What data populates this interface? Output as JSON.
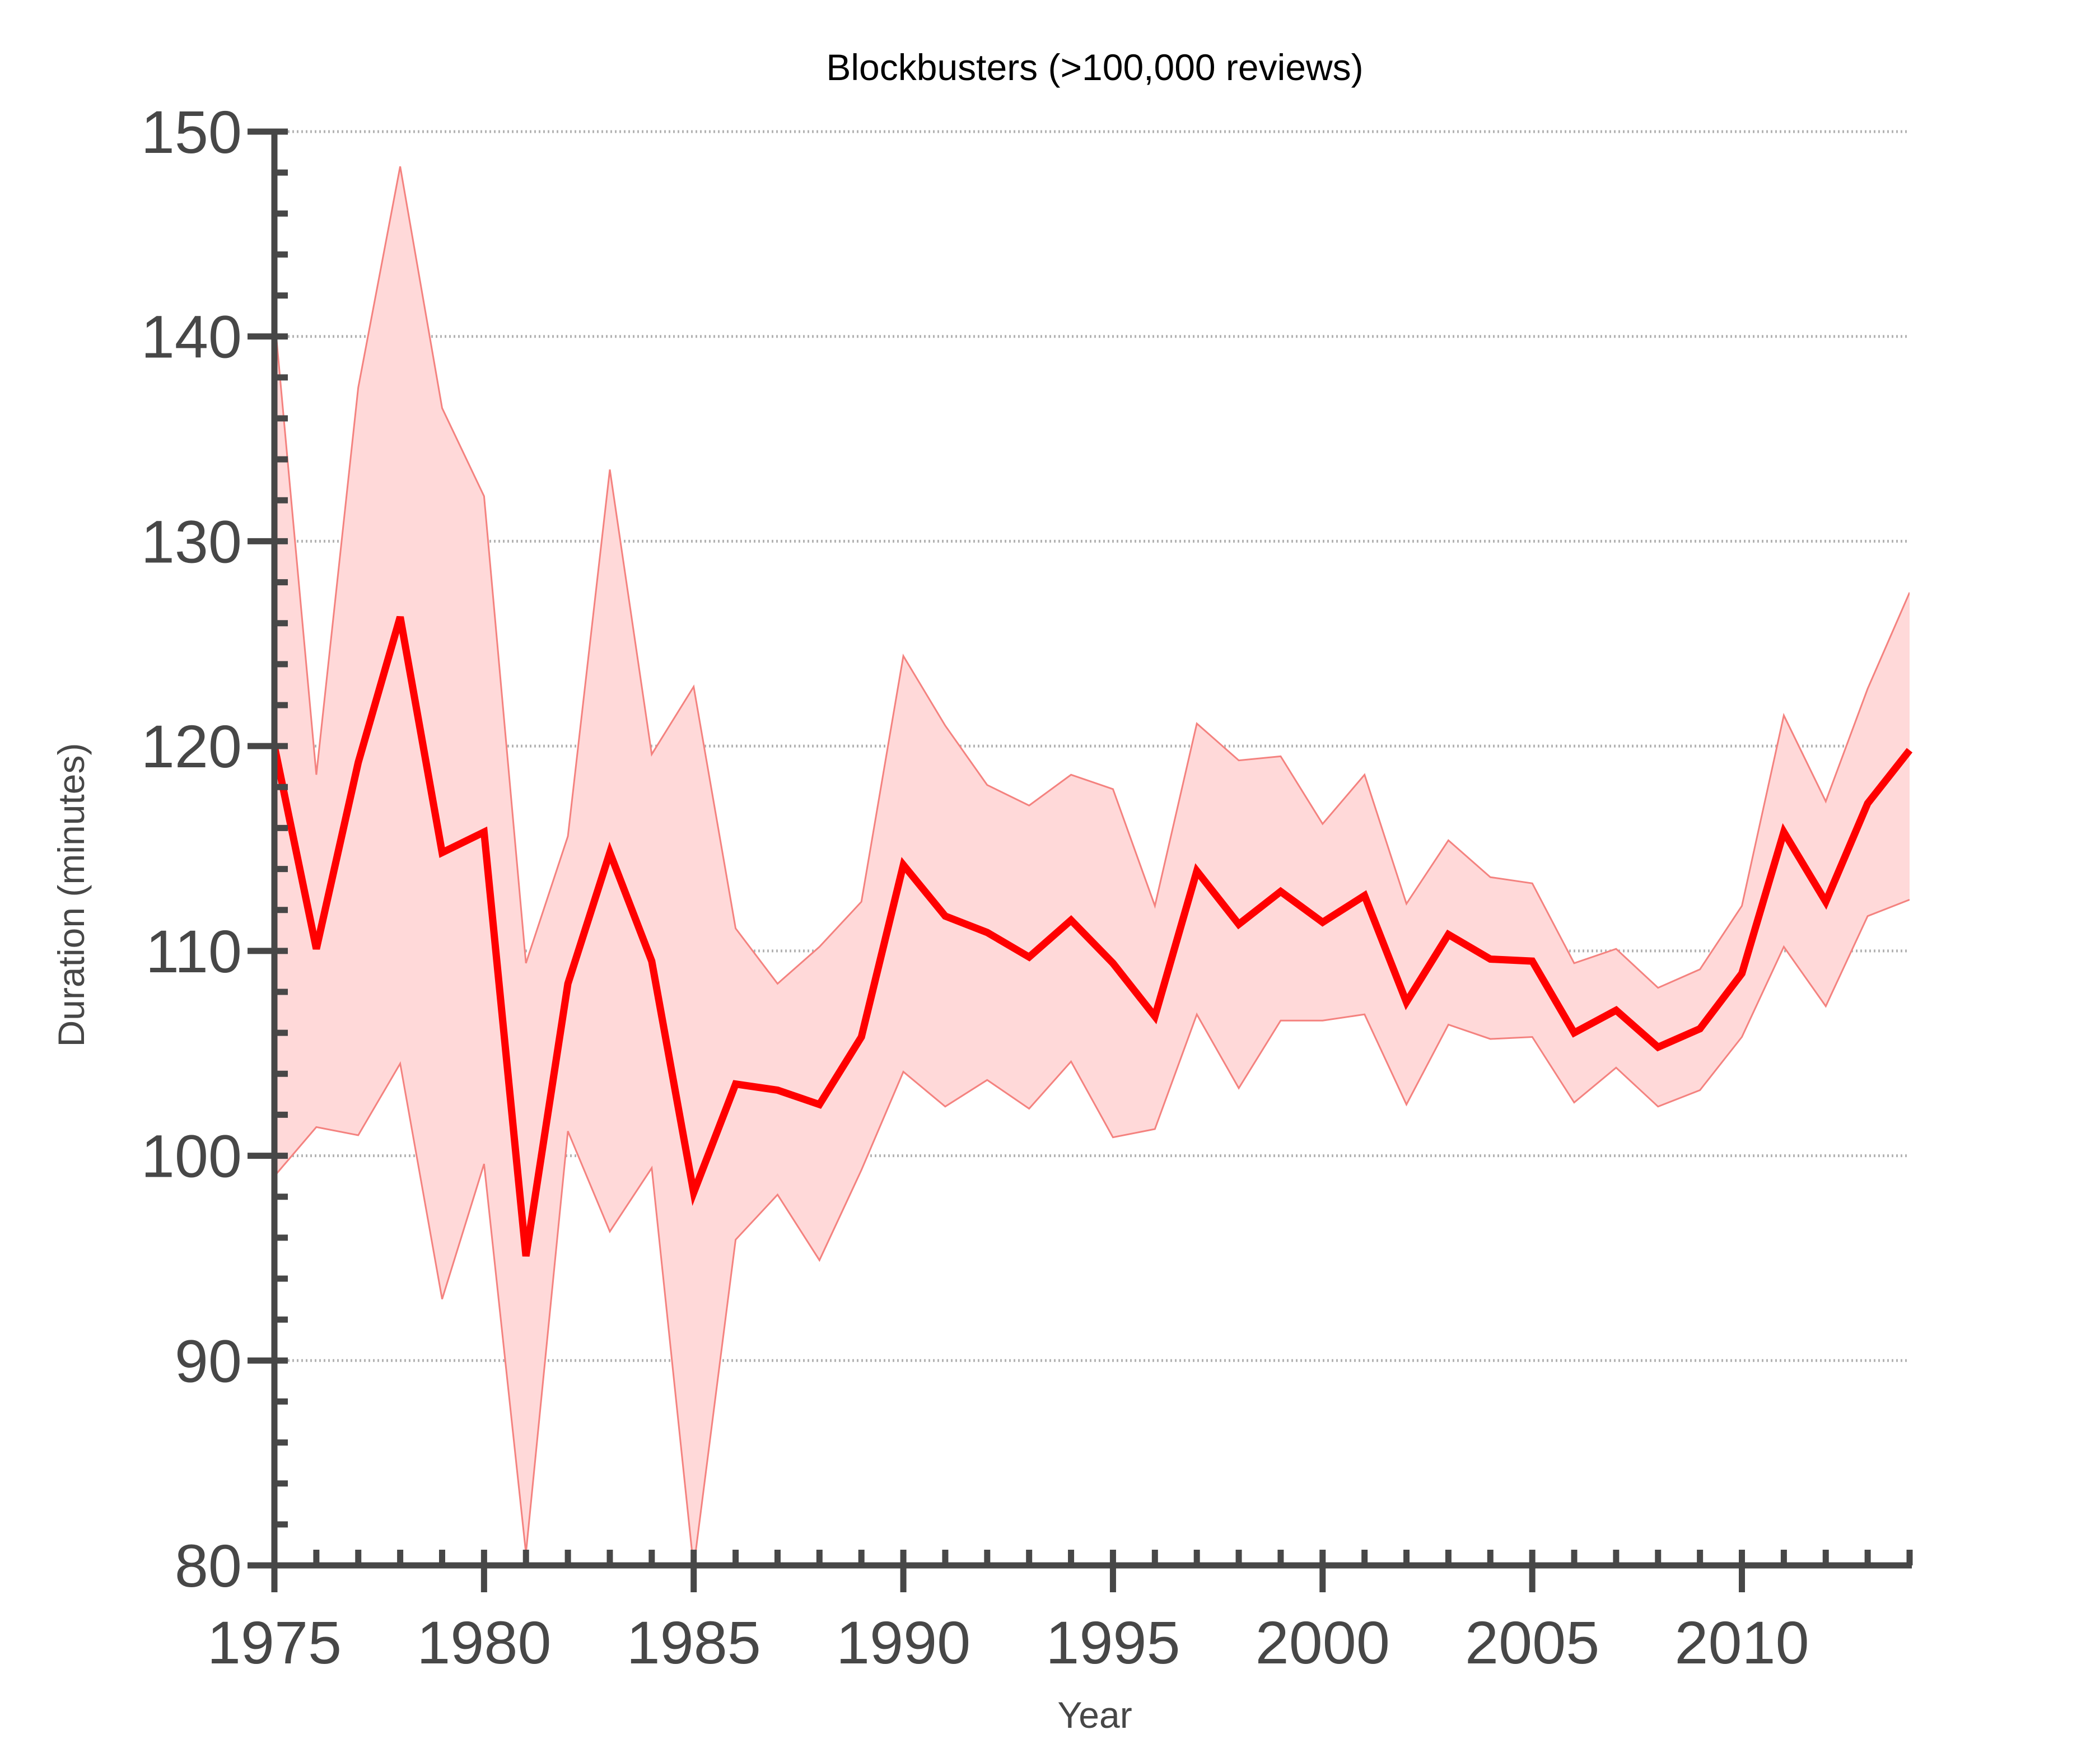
{
  "chart_data": {
    "type": "line",
    "title": "Blockbusters (>100,000 reviews)",
    "xlabel": "Year",
    "ylabel": "Duration (minutes)",
    "xlim": [
      1975,
      2014
    ],
    "ylim": [
      80,
      150
    ],
    "x_ticks": [
      1975,
      1980,
      1985,
      1990,
      1995,
      2000,
      2005,
      2010
    ],
    "y_ticks": [
      80,
      90,
      100,
      110,
      120,
      130,
      140,
      150
    ],
    "grid": "horizontal dotted at major y ticks",
    "x": [
      1975,
      1976,
      1977,
      1978,
      1979,
      1980,
      1981,
      1982,
      1983,
      1984,
      1985,
      1986,
      1987,
      1988,
      1989,
      1990,
      1991,
      1992,
      1993,
      1994,
      1995,
      1996,
      1997,
      1998,
      1999,
      2000,
      2001,
      2002,
      2003,
      2004,
      2005,
      2006,
      2007,
      2008,
      2009,
      2010,
      2011,
      2012,
      2013,
      2014
    ],
    "series": [
      {
        "role": "mean",
        "values": [
          120.0,
          110.1,
          119.2,
          126.3,
          114.8,
          115.8,
          95.1,
          108.4,
          114.8,
          109.5,
          98.2,
          103.5,
          103.2,
          102.5,
          105.8,
          114.2,
          111.7,
          110.9,
          109.7,
          111.5,
          109.4,
          106.8,
          113.9,
          111.3,
          112.9,
          111.4,
          112.7,
          107.5,
          110.8,
          109.6,
          109.5,
          106.0,
          107.1,
          105.3,
          106.2,
          108.9,
          115.8,
          112.4,
          117.2,
          119.8
        ]
      },
      {
        "role": "upper",
        "values": [
          141.0,
          118.6,
          137.5,
          148.3,
          136.5,
          132.2,
          109.4,
          115.6,
          133.5,
          119.6,
          122.9,
          111.1,
          108.4,
          110.2,
          112.4,
          124.4,
          121.0,
          118.1,
          117.1,
          118.6,
          117.9,
          112.2,
          121.1,
          119.3,
          119.5,
          116.2,
          118.6,
          112.3,
          115.4,
          113.6,
          113.3,
          109.4,
          110.1,
          108.2,
          109.1,
          112.2,
          121.5,
          117.3,
          122.8,
          127.5
        ]
      },
      {
        "role": "lower",
        "values": [
          99.0,
          101.4,
          101.0,
          104.5,
          93.0,
          99.6,
          80.6,
          101.2,
          96.3,
          99.4,
          79.9,
          95.9,
          98.1,
          94.9,
          99.3,
          104.1,
          102.4,
          103.7,
          102.3,
          104.6,
          100.9,
          101.3,
          106.9,
          103.3,
          106.6,
          106.6,
          106.9,
          102.5,
          106.4,
          105.7,
          105.8,
          102.6,
          104.3,
          102.4,
          103.2,
          105.8,
          110.2,
          107.3,
          111.7,
          112.5
        ]
      }
    ],
    "colors": {
      "line": "#ff0000",
      "band_fill": "#ffd9d9",
      "band_edge": "#f4827f",
      "axis": "#474747",
      "grid": "#b3b3b3"
    }
  }
}
